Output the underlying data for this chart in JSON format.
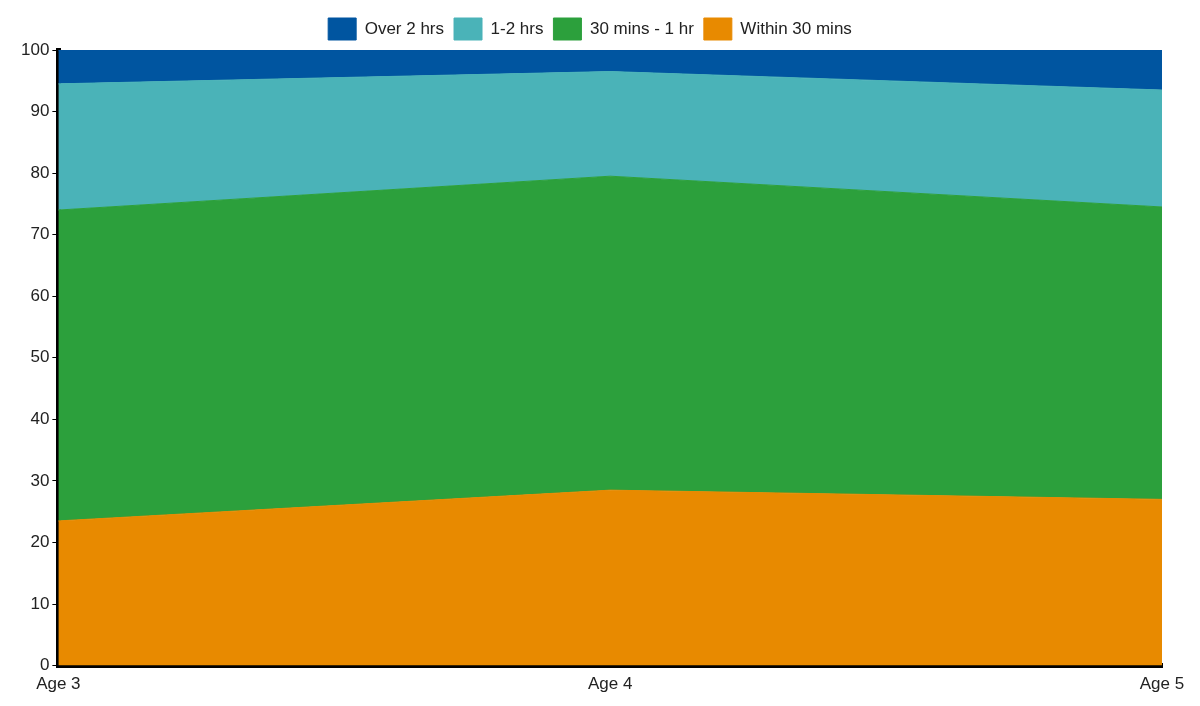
{
  "chart_data": {
    "type": "area",
    "stacked": true,
    "categories": [
      "Age 3",
      "Age 4",
      "Age 5"
    ],
    "series": [
      {
        "name": "Within 30 mins",
        "color": "#e88a00",
        "values": [
          23.5,
          28.5,
          27
        ]
      },
      {
        "name": "30 mins - 1 hr",
        "color": "#2ca03c",
        "values": [
          50.5,
          51,
          47.5
        ]
      },
      {
        "name": "1-2 hrs",
        "color": "#4ab3b8",
        "values": [
          20.5,
          17,
          19
        ]
      },
      {
        "name": "Over 2 hrs",
        "color": "#0055a0",
        "values": [
          5.5,
          3.5,
          6.5
        ]
      }
    ],
    "ylim": [
      0,
      100
    ],
    "yticks": [
      0,
      10,
      20,
      30,
      40,
      50,
      60,
      70,
      80,
      90,
      100
    ],
    "grid": false,
    "legend": "top"
  }
}
